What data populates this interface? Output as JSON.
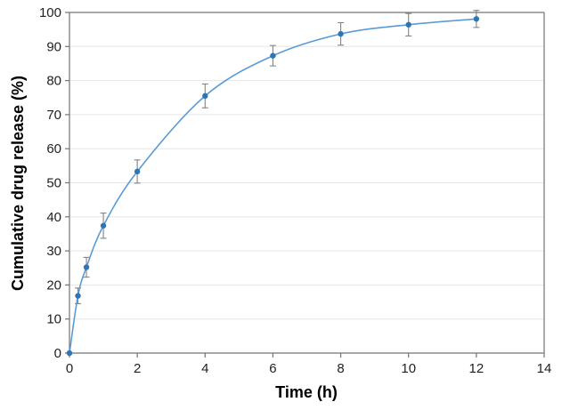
{
  "chart_data": {
    "type": "line",
    "title": "",
    "xlabel": "Time (h)",
    "ylabel": "Cumulative drug release (%)",
    "x": [
      0,
      0.25,
      0.5,
      1,
      2,
      4,
      6,
      8,
      10,
      12
    ],
    "series": [
      {
        "name": "Cumulative drug release",
        "values": [
          0,
          16.8,
          25.2,
          37.4,
          53.3,
          75.5,
          87.3,
          93.7,
          96.4,
          98.1
        ],
        "errors": [
          0,
          2.3,
          2.9,
          3.7,
          3.4,
          3.5,
          3.0,
          3.3,
          3.3,
          2.5
        ]
      }
    ],
    "xlim": [
      0,
      14
    ],
    "ylim": [
      0,
      100
    ],
    "x_ticks": [
      0,
      2,
      4,
      6,
      8,
      10,
      12,
      14
    ],
    "y_ticks": [
      0,
      10,
      20,
      30,
      40,
      50,
      60,
      70,
      80,
      90,
      100
    ],
    "grid": "horizontal",
    "legend": "none",
    "marker_shape": "circle",
    "line_style": "smooth",
    "colors": {
      "line": "#5B9BD5",
      "marker": "#2E75B6",
      "error_bar": "#848484",
      "gridline": "#E6E6E6",
      "axis_line": "#737373",
      "tick_label": "#1f1f1f",
      "axis_title": "#000000"
    }
  }
}
